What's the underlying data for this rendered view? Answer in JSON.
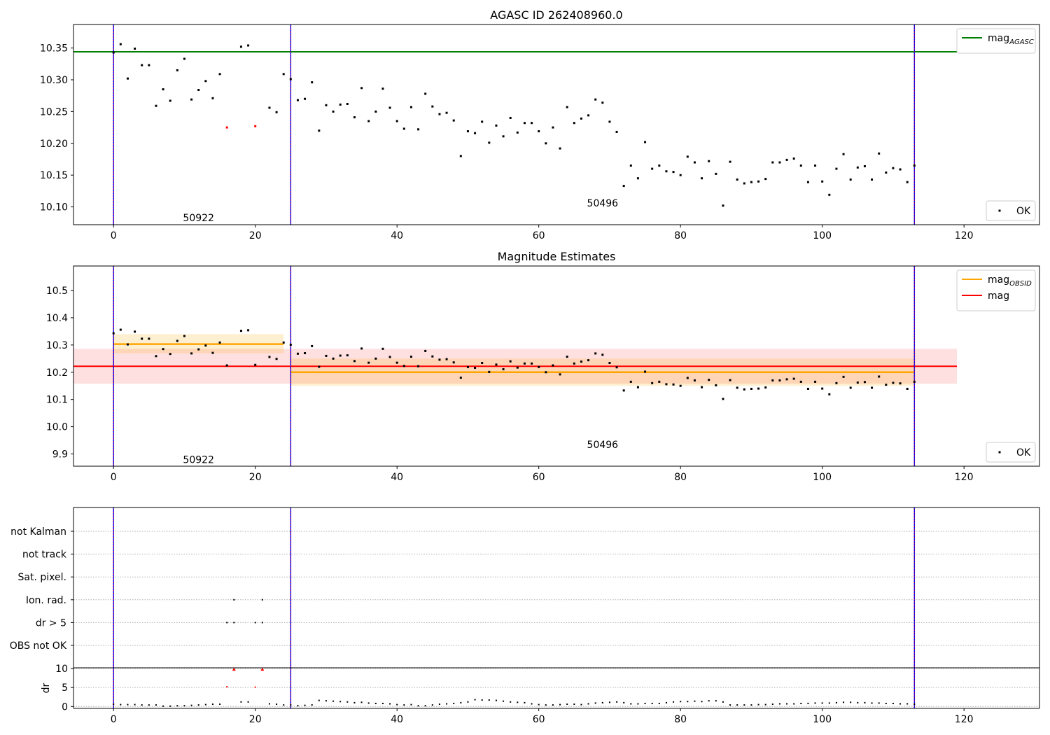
{
  "chart_data": [
    {
      "type": "scatter",
      "title": "AGASC ID 262408960.0",
      "xlim": [
        -5.65,
        130.65
      ],
      "ylim": [
        10.072,
        10.387
      ],
      "x_ticks": [
        0,
        20,
        40,
        60,
        80,
        100,
        120
      ],
      "y_ticks": [
        10.1,
        10.15,
        10.2,
        10.25,
        10.3,
        10.35
      ],
      "y_tick_labels": [
        "10.10",
        "10.15",
        "10.20",
        "10.25",
        "10.30",
        "10.35"
      ],
      "mag_agasc": 10.344,
      "mag_agasc_range": [
        -5.65,
        119
      ],
      "obsid_boundaries": [
        0,
        25,
        113
      ],
      "obsid_labels": [
        {
          "text": "50922",
          "x": 12,
          "y": 10.083
        },
        {
          "text": "50496",
          "x": 69,
          "y": 10.106
        }
      ],
      "legend_line": {
        "label": "mag",
        "subscript": "AGASC",
        "color": "#008000",
        "position": "upper right"
      },
      "legend_points": {
        "label": "OK",
        "position": "lower right"
      },
      "series": [
        {
          "name": "OK",
          "color": "#000000",
          "points": [
            [
              0,
              10.343
            ],
            [
              1,
              10.356
            ],
            [
              2,
              10.302
            ],
            [
              3,
              10.349
            ],
            [
              4,
              10.323
            ],
            [
              5,
              10.323
            ],
            [
              6,
              10.259
            ],
            [
              7,
              10.285
            ],
            [
              8,
              10.267
            ],
            [
              9,
              10.315
            ],
            [
              10,
              10.333
            ],
            [
              11,
              10.269
            ],
            [
              12,
              10.284
            ],
            [
              13,
              10.298
            ],
            [
              14,
              10.271
            ],
            [
              15,
              10.309
            ],
            [
              18,
              10.352
            ],
            [
              19,
              10.354
            ],
            [
              22,
              10.256
            ],
            [
              23,
              10.249
            ],
            [
              24,
              10.309
            ],
            [
              25,
              10.301
            ],
            [
              26,
              10.268
            ],
            [
              27,
              10.27
            ],
            [
              28,
              10.296
            ],
            [
              29,
              10.22
            ],
            [
              30,
              10.26
            ],
            [
              31,
              10.25
            ],
            [
              32,
              10.261
            ],
            [
              33,
              10.262
            ],
            [
              34,
              10.241
            ],
            [
              35,
              10.287
            ],
            [
              36,
              10.235
            ],
            [
              37,
              10.25
            ],
            [
              38,
              10.286
            ],
            [
              39,
              10.256
            ],
            [
              40,
              10.235
            ],
            [
              41,
              10.223
            ],
            [
              42,
              10.257
            ],
            [
              43,
              10.222
            ],
            [
              44,
              10.278
            ],
            [
              45,
              10.258
            ],
            [
              46,
              10.246
            ],
            [
              47,
              10.248
            ],
            [
              48,
              10.236
            ],
            [
              49,
              10.18
            ],
            [
              50,
              10.219
            ],
            [
              51,
              10.216
            ],
            [
              52,
              10.234
            ],
            [
              53,
              10.201
            ],
            [
              54,
              10.228
            ],
            [
              55,
              10.211
            ],
            [
              56,
              10.24
            ],
            [
              57,
              10.217
            ],
            [
              58,
              10.232
            ],
            [
              59,
              10.232
            ],
            [
              60,
              10.219
            ],
            [
              61,
              10.2
            ],
            [
              62,
              10.225
            ],
            [
              63,
              10.192
            ],
            [
              64,
              10.257
            ],
            [
              65,
              10.232
            ],
            [
              66,
              10.239
            ],
            [
              67,
              10.244
            ],
            [
              68,
              10.269
            ],
            [
              69,
              10.264
            ],
            [
              70,
              10.234
            ],
            [
              71,
              10.218
            ],
            [
              72,
              10.133
            ],
            [
              73,
              10.165
            ],
            [
              74,
              10.145
            ],
            [
              75,
              10.202
            ],
            [
              76,
              10.16
            ],
            [
              77,
              10.165
            ],
            [
              78,
              10.156
            ],
            [
              79,
              10.155
            ],
            [
              80,
              10.15
            ],
            [
              81,
              10.179
            ],
            [
              82,
              10.17
            ],
            [
              83,
              10.145
            ],
            [
              84,
              10.172
            ],
            [
              85,
              10.152
            ],
            [
              86,
              10.102
            ],
            [
              87,
              10.171
            ],
            [
              88,
              10.143
            ],
            [
              89,
              10.137
            ],
            [
              90,
              10.139
            ],
            [
              91,
              10.14
            ],
            [
              92,
              10.144
            ],
            [
              93,
              10.17
            ],
            [
              94,
              10.17
            ],
            [
              95,
              10.174
            ],
            [
              96,
              10.176
            ],
            [
              97,
              10.165
            ],
            [
              98,
              10.139
            ],
            [
              99,
              10.165
            ],
            [
              100,
              10.14
            ],
            [
              101,
              10.119
            ],
            [
              102,
              10.16
            ],
            [
              103,
              10.183
            ],
            [
              104,
              10.143
            ],
            [
              105,
              10.162
            ],
            [
              106,
              10.164
            ],
            [
              107,
              10.143
            ],
            [
              108,
              10.184
            ],
            [
              109,
              10.154
            ],
            [
              110,
              10.161
            ],
            [
              111,
              10.159
            ],
            [
              112,
              10.139
            ],
            [
              113,
              10.165
            ]
          ]
        },
        {
          "name": "rejected",
          "color": "#ff0000",
          "points": [
            [
              16,
              10.225
            ],
            [
              20,
              10.227
            ]
          ]
        }
      ]
    },
    {
      "type": "scatter",
      "title": "Magnitude Estimates",
      "xlim": [
        -5.65,
        130.65
      ],
      "ylim": [
        9.855,
        10.59
      ],
      "x_ticks": [
        0,
        20,
        40,
        60,
        80,
        100,
        120
      ],
      "y_ticks": [
        9.9,
        10.0,
        10.1,
        10.2,
        10.3,
        10.4,
        10.5
      ],
      "y_tick_labels": [
        "9.9",
        "10.0",
        "10.1",
        "10.2",
        "10.3",
        "10.4",
        "10.5"
      ],
      "mag": 10.222,
      "mag_band": [
        10.158,
        10.286
      ],
      "mag_range": [
        -5.65,
        119
      ],
      "mag_obsid": [
        {
          "x_range": [
            0,
            24
          ],
          "value": 10.303,
          "band": [
            10.27,
            10.34
          ]
        },
        {
          "x_range": [
            25,
            113
          ],
          "value": 10.2,
          "band": [
            10.15,
            10.25
          ]
        }
      ],
      "obsid_boundaries": [
        0,
        25,
        113
      ],
      "obsid_labels": [
        {
          "text": "50922",
          "x": 12,
          "y": 9.88
        },
        {
          "text": "50496",
          "x": 69,
          "y": 9.935
        }
      ],
      "legend_lines": [
        {
          "label": "mag",
          "subscript": "OBSID",
          "color": "#ffa500"
        },
        {
          "label": "mag",
          "subscript": "",
          "color": "#ff0000"
        }
      ],
      "legend_points": {
        "label": "OK",
        "position": "lower right"
      },
      "uses_points_of": 0
    },
    {
      "type": "scatter",
      "title": "",
      "xlim": [
        -5.65,
        130.65
      ],
      "x_ticks": [
        0,
        20,
        40,
        60,
        80,
        100,
        120
      ],
      "obsid_boundaries": [
        0,
        25,
        113
      ],
      "flag_rows": [
        "not Kalman",
        "not track",
        "Sat. pixel.",
        "Ion. rad.",
        "dr > 5",
        "OBS not OK"
      ],
      "flag_points": [
        {
          "row": "Ion. rad.",
          "x": [
            17,
            21
          ]
        },
        {
          "row": "dr > 5",
          "x": [
            16,
            17,
            20,
            21
          ]
        }
      ]
    },
    {
      "type": "scatter",
      "title": "",
      "ylabel": "dr",
      "xlim": [
        -5.65,
        130.65
      ],
      "ylim": [
        -0.5,
        10.2
      ],
      "x_ticks": [
        0,
        20,
        40,
        60,
        80,
        100,
        120
      ],
      "y_ticks": [
        0,
        5,
        10
      ],
      "y_tick_labels": [
        "0",
        "5",
        "10"
      ],
      "obsid_boundaries": [
        0,
        25,
        113
      ],
      "series": [
        {
          "name": "dr OK",
          "color": "#000000",
          "points": [
            [
              0,
              0.6
            ],
            [
              1,
              0.5
            ],
            [
              2,
              0.5
            ],
            [
              3,
              0.5
            ],
            [
              4,
              0.4
            ],
            [
              5,
              0.4
            ],
            [
              6,
              0.4
            ],
            [
              7,
              0.1
            ],
            [
              8,
              0.1
            ],
            [
              9,
              0.2
            ],
            [
              10,
              0.2
            ],
            [
              11,
              0.3
            ],
            [
              12,
              0.4
            ],
            [
              13,
              0.5
            ],
            [
              14,
              0.6
            ],
            [
              15,
              0.6
            ],
            [
              18,
              1.2
            ],
            [
              19,
              1.2
            ],
            [
              22,
              0.7
            ],
            [
              23,
              0.6
            ],
            [
              24,
              0.4
            ],
            [
              25,
              0.4
            ],
            [
              26,
              0.2
            ],
            [
              27,
              0.3
            ],
            [
              28,
              0.4
            ],
            [
              29,
              1.6
            ],
            [
              30,
              1.5
            ],
            [
              31,
              1.4
            ],
            [
              32,
              1.3
            ],
            [
              33,
              1.2
            ],
            [
              34,
              1.0
            ],
            [
              35,
              1.1
            ],
            [
              36,
              0.9
            ],
            [
              37,
              0.8
            ],
            [
              38,
              0.8
            ],
            [
              39,
              0.7
            ],
            [
              40,
              0.5
            ],
            [
              41,
              0.4
            ],
            [
              42,
              0.5
            ],
            [
              43,
              0.2
            ],
            [
              44,
              0.2
            ],
            [
              45,
              0.4
            ],
            [
              46,
              0.6
            ],
            [
              47,
              0.7
            ],
            [
              48,
              0.8
            ],
            [
              49,
              1.0
            ],
            [
              50,
              1.2
            ],
            [
              51,
              1.8
            ],
            [
              52,
              1.7
            ],
            [
              53,
              1.7
            ],
            [
              54,
              1.6
            ],
            [
              55,
              1.4
            ],
            [
              56,
              1.2
            ],
            [
              57,
              1.1
            ],
            [
              58,
              1.0
            ],
            [
              59,
              0.7
            ],
            [
              60,
              0.5
            ],
            [
              61,
              0.4
            ],
            [
              62,
              0.4
            ],
            [
              63,
              0.5
            ],
            [
              64,
              0.6
            ],
            [
              65,
              0.6
            ],
            [
              66,
              0.5
            ],
            [
              67,
              0.7
            ],
            [
              68,
              0.9
            ],
            [
              69,
              1.0
            ],
            [
              70,
              1.1
            ],
            [
              71,
              1.2
            ],
            [
              72,
              1.0
            ],
            [
              73,
              0.7
            ],
            [
              74,
              0.7
            ],
            [
              75,
              0.8
            ],
            [
              76,
              0.8
            ],
            [
              77,
              0.8
            ],
            [
              78,
              1.0
            ],
            [
              79,
              1.2
            ],
            [
              80,
              1.3
            ],
            [
              81,
              1.3
            ],
            [
              82,
              1.4
            ],
            [
              83,
              1.3
            ],
            [
              84,
              1.5
            ],
            [
              85,
              1.5
            ],
            [
              86,
              1.2
            ],
            [
              87,
              0.4
            ],
            [
              88,
              0.4
            ],
            [
              89,
              0.4
            ],
            [
              90,
              0.4
            ],
            [
              91,
              0.5
            ],
            [
              92,
              0.5
            ],
            [
              93,
              0.6
            ],
            [
              94,
              0.7
            ],
            [
              95,
              0.7
            ],
            [
              96,
              0.7
            ],
            [
              97,
              0.8
            ],
            [
              98,
              0.8
            ],
            [
              99,
              0.9
            ],
            [
              100,
              0.9
            ],
            [
              101,
              0.9
            ],
            [
              102,
              1.0
            ],
            [
              103,
              1.1
            ],
            [
              104,
              1.1
            ],
            [
              105,
              1.0
            ],
            [
              106,
              1.0
            ],
            [
              107,
              0.9
            ],
            [
              108,
              0.9
            ],
            [
              109,
              0.8
            ],
            [
              110,
              0.8
            ],
            [
              111,
              0.7
            ],
            [
              112,
              0.7
            ],
            [
              113,
              0.6
            ]
          ]
        },
        {
          "name": "dr rejected",
          "color": "#ff0000",
          "points": [
            [
              16,
              5.2
            ],
            [
              20,
              5.1
            ]
          ]
        },
        {
          "name": "dr off-scale",
          "color": "#ff0000",
          "marker": "triangle",
          "points": [
            [
              17,
              9.8
            ],
            [
              21,
              9.8
            ]
          ]
        }
      ]
    }
  ]
}
